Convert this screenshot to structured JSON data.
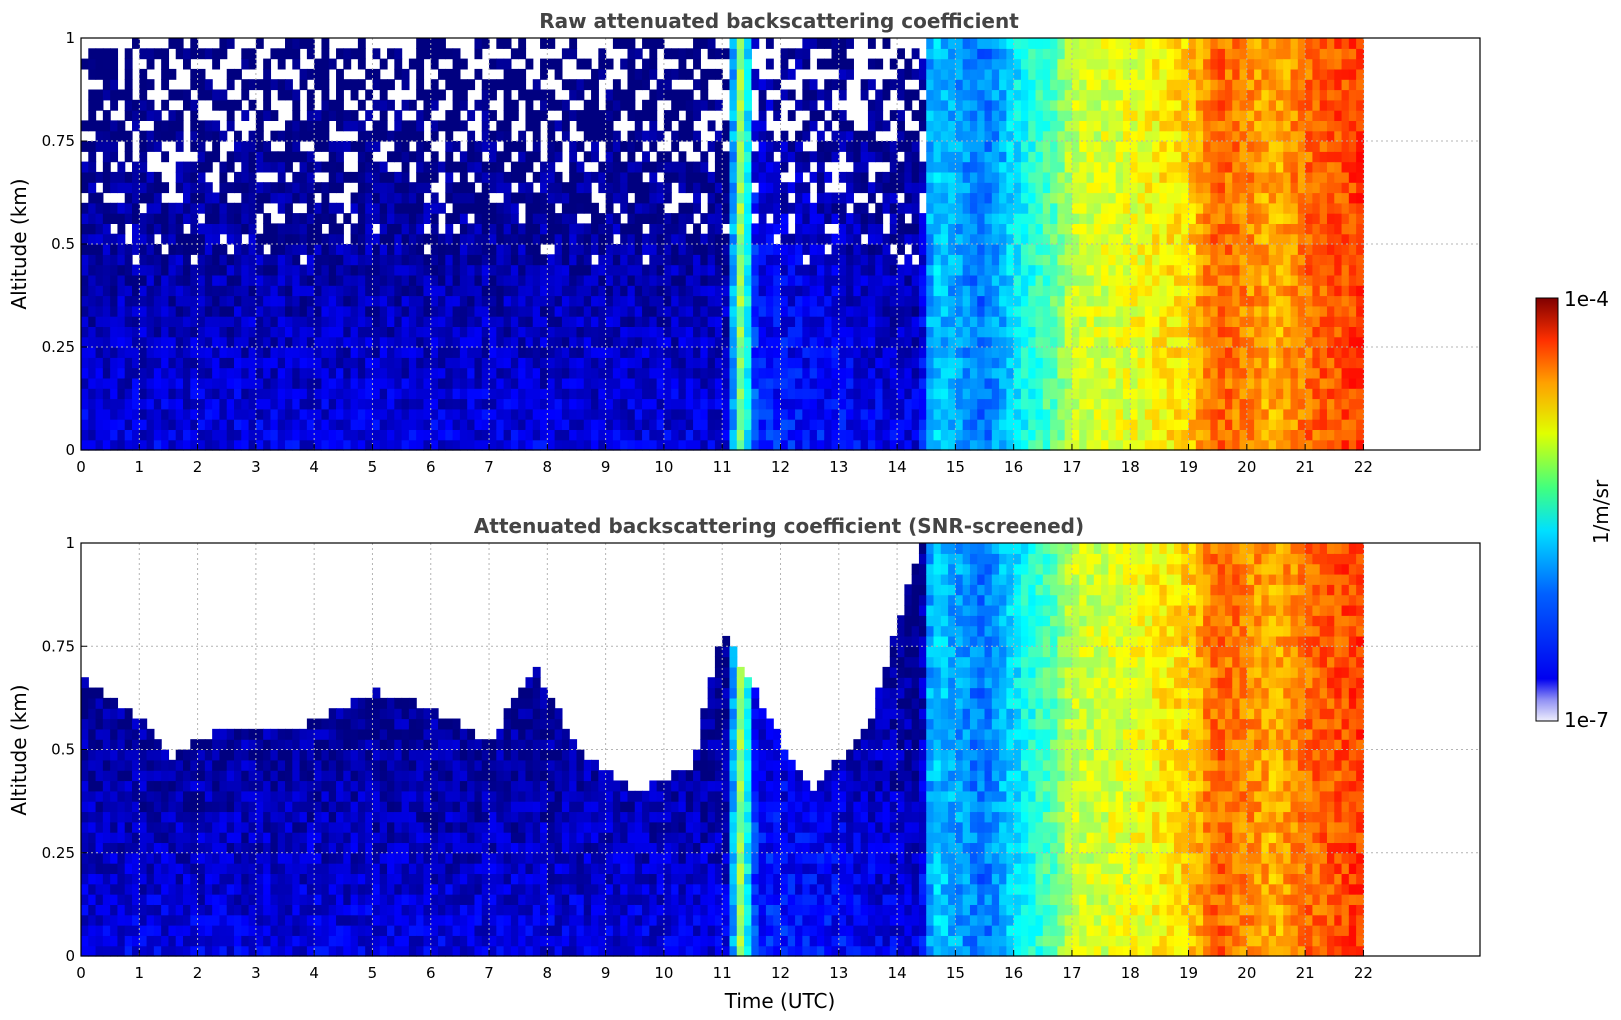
{
  "chart_data": [
    {
      "type": "heatmap",
      "title": "Raw attenuated backscattering coefficient",
      "xlabel": "",
      "ylabel": "Altitude (km)",
      "xlim": [
        0,
        24
      ],
      "ylim": [
        0,
        1
      ],
      "data_xlim": [
        0,
        22
      ],
      "xticks": [
        "0",
        "1",
        "2",
        "3",
        "4",
        "5",
        "6",
        "7",
        "8",
        "9",
        "10",
        "11",
        "12",
        "13",
        "14",
        "15",
        "16",
        "17",
        "18",
        "19",
        "20",
        "21",
        "22"
      ],
      "yticks": [
        "0",
        "0.25",
        "0.5",
        "0.75",
        "1"
      ],
      "grid": true,
      "screening": "none",
      "log10_levels": [
        {
          "time_utc": 0,
          "level": -6.7
        },
        {
          "time_utc": 11.1,
          "level": -6.7
        },
        {
          "time_utc": 11.3,
          "level": -5.4
        },
        {
          "time_utc": 11.6,
          "level": -6.5
        },
        {
          "time_utc": 14.4,
          "level": -6.7
        },
        {
          "time_utc": 14.6,
          "level": -6.0
        },
        {
          "time_utc": 15.5,
          "level": -6.3
        },
        {
          "time_utc": 16.1,
          "level": -5.9
        },
        {
          "time_utc": 16.7,
          "level": -5.6
        },
        {
          "time_utc": 17.0,
          "level": -5.3
        },
        {
          "time_utc": 18.0,
          "level": -5.2
        },
        {
          "time_utc": 19.0,
          "level": -5.0
        },
        {
          "time_utc": 19.5,
          "level": -4.65
        },
        {
          "time_utc": 20.5,
          "level": -4.9
        },
        {
          "time_utc": 21.0,
          "level": -4.7
        },
        {
          "time_utc": 21.9,
          "level": -4.55
        }
      ]
    },
    {
      "type": "heatmap",
      "title": "Attenuated backscattering coefficient (SNR-screened)",
      "xlabel": "Time (UTC)",
      "ylabel": "Altitude (km)",
      "xlim": [
        0,
        24
      ],
      "ylim": [
        0,
        1
      ],
      "data_xlim": [
        0,
        22
      ],
      "xticks": [
        "0",
        "1",
        "2",
        "3",
        "4",
        "5",
        "6",
        "7",
        "8",
        "9",
        "10",
        "11",
        "12",
        "13",
        "14",
        "15",
        "16",
        "17",
        "18",
        "19",
        "20",
        "21",
        "22"
      ],
      "yticks": [
        "0",
        "0.25",
        "0.5",
        "0.75",
        "1"
      ],
      "grid": true,
      "screening": "snr",
      "screen_top_km": [
        {
          "time_utc": 0,
          "top": 0.68
        },
        {
          "time_utc": 1.0,
          "top": 0.58
        },
        {
          "time_utc": 1.5,
          "top": 0.48
        },
        {
          "time_utc": 2.5,
          "top": 0.56
        },
        {
          "time_utc": 3.5,
          "top": 0.54
        },
        {
          "time_utc": 5.0,
          "top": 0.64
        },
        {
          "time_utc": 6.0,
          "top": 0.6
        },
        {
          "time_utc": 7.0,
          "top": 0.52
        },
        {
          "time_utc": 7.8,
          "top": 0.7
        },
        {
          "time_utc": 8.5,
          "top": 0.5
        },
        {
          "time_utc": 9.5,
          "top": 0.4
        },
        {
          "time_utc": 10.5,
          "top": 0.46
        },
        {
          "time_utc": 11.0,
          "top": 0.8
        },
        {
          "time_utc": 11.7,
          "top": 0.6
        },
        {
          "time_utc": 12.5,
          "top": 0.4
        },
        {
          "time_utc": 13.5,
          "top": 0.55
        },
        {
          "time_utc": 14.2,
          "top": 0.9
        },
        {
          "time_utc": 14.4,
          "top": 1.0
        },
        {
          "time_utc": 22,
          "top": 1.0
        }
      ]
    }
  ],
  "colorbar": {
    "label": "1/m/sr",
    "max_label": "1e-4",
    "min_label": "1e-7",
    "scale": "log",
    "range": [
      1e-07,
      0.0001
    ],
    "colormap": "jet"
  }
}
